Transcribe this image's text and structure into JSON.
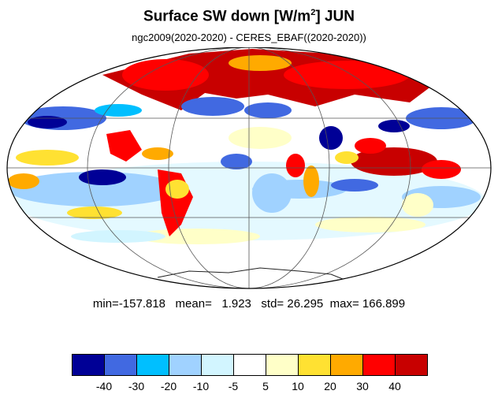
{
  "title": {
    "main": "Surface SW down [W/m",
    "sup": "2",
    "end": "]  JUN"
  },
  "subtitle": "ngc2009(2020-2020) - CERES_EBAF((2020-2020))",
  "stats": {
    "min_label": "min=",
    "min": "-157.818",
    "mean_label": "mean=",
    "mean": "1.923",
    "std_label": "std=",
    "std": "26.295",
    "max_label": "max=",
    "max": "166.899"
  },
  "colorbar": {
    "colors": [
      "#000096",
      "#4169e1",
      "#00bfff",
      "#a0d2ff",
      "#d2f5ff",
      "#ffffff",
      "#ffffc8",
      "#ffe132",
      "#ffaa00",
      "#ff0000",
      "#c80000"
    ],
    "labels": [
      "-40",
      "-30",
      "-20",
      "-10",
      "-5",
      "5",
      "10",
      "20",
      "30",
      "40"
    ]
  },
  "map": {
    "projection": "mollweide",
    "border_color": "#000000",
    "grid_color": "#555555"
  }
}
